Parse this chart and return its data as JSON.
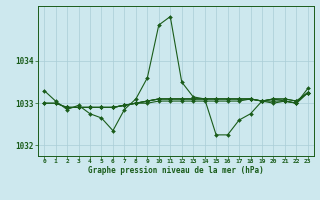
{
  "title": "Graphe pression niveau de la mer (hPa)",
  "background_color": "#cde8ee",
  "grid_color": "#aacdd6",
  "line_color": "#1a5c1a",
  "xlim": [
    -0.5,
    23.5
  ],
  "ylim": [
    1031.75,
    1035.3
  ],
  "yticks": [
    1032,
    1033,
    1034
  ],
  "xticks": [
    0,
    1,
    2,
    3,
    4,
    5,
    6,
    7,
    8,
    9,
    10,
    11,
    12,
    13,
    14,
    15,
    16,
    17,
    18,
    19,
    20,
    21,
    22,
    23
  ],
  "series": [
    {
      "x": [
        0,
        1,
        2,
        3,
        4,
        5,
        6,
        7,
        8,
        9,
        10,
        11,
        12,
        13,
        14,
        15,
        16,
        17,
        18,
        19,
        20,
        21,
        22,
        23
      ],
      "y": [
        1033.3,
        1033.05,
        1032.85,
        1032.95,
        1032.75,
        1032.65,
        1032.35,
        1032.85,
        1033.1,
        1033.6,
        1034.85,
        1035.05,
        1033.5,
        1033.15,
        1033.1,
        1032.25,
        1032.25,
        1032.6,
        1032.75,
        1033.05,
        1033.0,
        1033.05,
        1033.0,
        1033.35
      ]
    },
    {
      "x": [
        0,
        1,
        2,
        3,
        4,
        5,
        6,
        7,
        8,
        9,
        10,
        11,
        12,
        13,
        14,
        15,
        16,
        17,
        18,
        19,
        20,
        21,
        22,
        23
      ],
      "y": [
        1033.0,
        1033.0,
        1032.9,
        1032.9,
        1032.9,
        1032.9,
        1032.9,
        1032.95,
        1033.0,
        1033.0,
        1033.05,
        1033.05,
        1033.05,
        1033.05,
        1033.05,
        1033.05,
        1033.05,
        1033.05,
        1033.1,
        1033.05,
        1033.05,
        1033.05,
        1033.0,
        1033.25
      ]
    },
    {
      "x": [
        0,
        1,
        2,
        3,
        4,
        5,
        6,
        7,
        8,
        9,
        10,
        11,
        12,
        13,
        14,
        15,
        16,
        17,
        18,
        19,
        20,
        21,
        22,
        23
      ],
      "y": [
        1033.0,
        1033.0,
        1032.9,
        1032.9,
        1032.9,
        1032.9,
        1032.9,
        1032.95,
        1033.0,
        1033.05,
        1033.1,
        1033.1,
        1033.1,
        1033.1,
        1033.1,
        1033.1,
        1033.1,
        1033.1,
        1033.1,
        1033.05,
        1033.1,
        1033.1,
        1033.05,
        1033.25
      ]
    },
    {
      "x": [
        2,
        3,
        4,
        5,
        6,
        7,
        8,
        9,
        10,
        11,
        12,
        13,
        14,
        15,
        16,
        17,
        18,
        19,
        20,
        21,
        22,
        23
      ],
      "y": [
        1032.9,
        1032.9,
        1032.9,
        1032.9,
        1032.9,
        1032.95,
        1033.0,
        1033.05,
        1033.1,
        1033.1,
        1033.1,
        1033.1,
        1033.1,
        1033.1,
        1033.1,
        1033.1,
        1033.1,
        1033.05,
        1033.1,
        1033.1,
        1033.05,
        1033.25
      ]
    },
    {
      "x": [
        2,
        3,
        4,
        5,
        6,
        7,
        8,
        9,
        10,
        11,
        12,
        13,
        14,
        15,
        16,
        17,
        18,
        19,
        20,
        21,
        22,
        23
      ],
      "y": [
        1032.9,
        1032.9,
        1032.9,
        1032.9,
        1032.9,
        1032.95,
        1033.0,
        1033.05,
        1033.1,
        1033.1,
        1033.1,
        1033.1,
        1033.1,
        1033.1,
        1033.1,
        1033.1,
        1033.1,
        1033.05,
        1033.1,
        1033.05,
        1033.0,
        1033.25
      ]
    }
  ]
}
